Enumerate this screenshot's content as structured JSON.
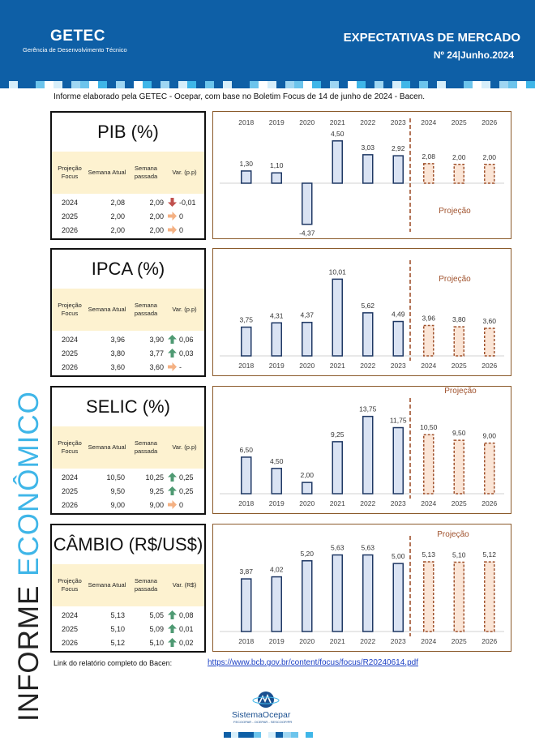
{
  "header": {
    "logo": "GETEC",
    "logo_sub": "Gerência de Desenvolvimento Técnico",
    "title": "EXPECTATIVAS DE MERCADO",
    "issue": "Nº 24|Junho.2024",
    "colors": {
      "primary": "#0e5fa6",
      "accent": "#3fb6e8"
    }
  },
  "intro": "Informe elaborado pela GETEC - Ocepar, com base no Boletim Focus de 14 de junho de 2024 - Bacen.",
  "side_title": {
    "word1": "INFORME",
    "word2": "ECONÔMICO"
  },
  "table_headers": [
    "Projeção Focus",
    "Semana Atual",
    "Semana passada"
  ],
  "sections": [
    {
      "title": "PIB (%)",
      "var_header": "Var. (p.p)",
      "rows": [
        {
          "year": "2024",
          "atual": "2,08",
          "passada": "2,09",
          "arrow": "down",
          "var": "-0,01"
        },
        {
          "year": "2025",
          "atual": "2,00",
          "passada": "2,00",
          "arrow": "flat",
          "var": "0"
        },
        {
          "year": "2026",
          "atual": "2,00",
          "passada": "2,00",
          "arrow": "flat",
          "var": "0"
        }
      ]
    },
    {
      "title": "IPCA (%)",
      "var_header": "Var. (p.p)",
      "rows": [
        {
          "year": "2024",
          "atual": "3,96",
          "passada": "3,90",
          "arrow": "up",
          "var": "0,06"
        },
        {
          "year": "2025",
          "atual": "3,80",
          "passada": "3,77",
          "arrow": "up",
          "var": "0,03"
        },
        {
          "year": "2026",
          "atual": "3,60",
          "passada": "3,60",
          "arrow": "flat",
          "var": "-"
        }
      ]
    },
    {
      "title": "SELIC (%)",
      "var_header": "Var. (p.p)",
      "rows": [
        {
          "year": "2024",
          "atual": "10,50",
          "passada": "10,25",
          "arrow": "up",
          "var": "0,25"
        },
        {
          "year": "2025",
          "atual": "9,50",
          "passada": "9,25",
          "arrow": "up",
          "var": "0,25"
        },
        {
          "year": "2026",
          "atual": "9,00",
          "passada": "9,00",
          "arrow": "flat",
          "var": "0"
        }
      ]
    },
    {
      "title": "CÂMBIO (R$/US$)",
      "var_header": "Var. (R$)",
      "rows": [
        {
          "year": "2024",
          "atual": "5,13",
          "passada": "5,05",
          "arrow": "up",
          "var": "0,08"
        },
        {
          "year": "2025",
          "atual": "5,10",
          "passada": "5,09",
          "arrow": "up",
          "var": "0,01"
        },
        {
          "year": "2026",
          "atual": "5,12",
          "passada": "5,10",
          "arrow": "up",
          "var": "0,02"
        }
      ]
    }
  ],
  "chart_data": [
    {
      "type": "bar",
      "categories": [
        "2018",
        "2019",
        "2020",
        "2021",
        "2022",
        "2023",
        "2024",
        "2025",
        "2026"
      ],
      "values": [
        1.3,
        1.1,
        -4.37,
        4.5,
        3.03,
        2.92,
        2.08,
        2.0,
        2.0
      ],
      "labels": [
        "1,30",
        "1,10",
        "-4,37",
        "4,50",
        "3,03",
        "2,92",
        "2,08",
        "2,00",
        "2,00"
      ],
      "projection_start_index": 6,
      "projection_label": "Projeção",
      "ylim": [
        -5,
        5
      ],
      "axis_position": "top"
    },
    {
      "type": "bar",
      "categories": [
        "2018",
        "2019",
        "2020",
        "2021",
        "2022",
        "2023",
        "2024",
        "2025",
        "2026"
      ],
      "values": [
        3.75,
        4.31,
        4.37,
        10.01,
        5.62,
        4.49,
        3.96,
        3.8,
        3.6
      ],
      "labels": [
        "3,75",
        "4,31",
        "4,37",
        "10,01",
        "5,62",
        "4,49",
        "3,96",
        "3,80",
        "3,60"
      ],
      "projection_start_index": 6,
      "projection_label": "Projeção",
      "ylim": [
        0,
        11
      ],
      "axis_position": "bottom"
    },
    {
      "type": "bar",
      "categories": [
        "2018",
        "2019",
        "2020",
        "2021",
        "2022",
        "2023",
        "2024",
        "2025",
        "2026"
      ],
      "values": [
        6.5,
        4.5,
        2.0,
        9.25,
        13.75,
        11.75,
        10.5,
        9.5,
        9.0
      ],
      "labels": [
        "6,50",
        "4,50",
        "2,00",
        "9,25",
        "13,75",
        "11,75",
        "10,50",
        "9,50",
        "9,00"
      ],
      "projection_start_index": 6,
      "projection_label": "Projeção",
      "ylim": [
        0,
        15
      ],
      "axis_position": "bottom"
    },
    {
      "type": "bar",
      "categories": [
        "2018",
        "2019",
        "2020",
        "2021",
        "2022",
        "2023",
        "2024",
        "2025",
        "2026"
      ],
      "values": [
        3.87,
        4.02,
        5.2,
        5.63,
        5.63,
        5.0,
        5.13,
        5.1,
        5.12
      ],
      "labels": [
        "3,87",
        "4,02",
        "5,20",
        "5,63",
        "5,63",
        "5,00",
        "5,13",
        "5,10",
        "5,12"
      ],
      "projection_start_index": 6,
      "projection_label": "Projeção",
      "ylim": [
        0,
        6.2
      ],
      "axis_position": "bottom"
    }
  ],
  "footer": {
    "link_label": "Link do relatório completo do Bacen:",
    "link": "https://www.bcb.gov.br/content/focus/focus/R20240614.pdf",
    "brand": "SistemaOcepar",
    "brand_sub": "FECOOPAR - OCEPAR - SESCOOP/PR"
  }
}
